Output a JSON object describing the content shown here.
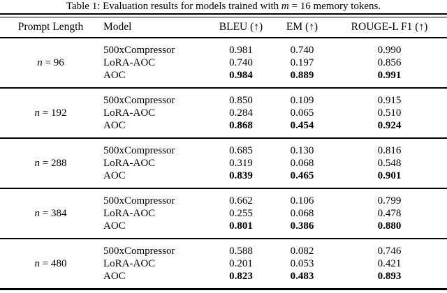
{
  "caption": {
    "prefix": "Table 1: Evaluation results for models trained with ",
    "math_var": "m",
    "suffix": " = 16 memory tokens."
  },
  "table": {
    "headers": [
      "Prompt Length",
      "Model",
      "BLEU (↑)",
      "EM (↑)",
      "ROUGE-L F1 (↑)"
    ],
    "groups": [
      {
        "prompt": {
          "var": "n",
          "eq": "= 96"
        },
        "rows": [
          {
            "model": "500xCompressor",
            "values": [
              "0.981",
              "0.740",
              "0.990"
            ],
            "bold": false
          },
          {
            "model": "LoRA-AOC",
            "values": [
              "0.740",
              "0.197",
              "0.856"
            ],
            "bold": false
          },
          {
            "model": "AOC",
            "values": [
              "0.984",
              "0.889",
              "0.991"
            ],
            "bold": true
          }
        ]
      },
      {
        "prompt": {
          "var": "n",
          "eq": "= 192"
        },
        "rows": [
          {
            "model": "500xCompressor",
            "values": [
              "0.850",
              "0.109",
              "0.915"
            ],
            "bold": false
          },
          {
            "model": "LoRA-AOC",
            "values": [
              "0.284",
              "0.065",
              "0.510"
            ],
            "bold": false
          },
          {
            "model": "AOC",
            "values": [
              "0.868",
              "0.454",
              "0.924"
            ],
            "bold": true
          }
        ]
      },
      {
        "prompt": {
          "var": "n",
          "eq": "= 288"
        },
        "rows": [
          {
            "model": "500xCompressor",
            "values": [
              "0.685",
              "0.130",
              "0.816"
            ],
            "bold": false
          },
          {
            "model": "LoRA-AOC",
            "values": [
              "0.319",
              "0.068",
              "0.548"
            ],
            "bold": false
          },
          {
            "model": "AOC",
            "values": [
              "0.839",
              "0.465",
              "0.901"
            ],
            "bold": true
          }
        ]
      },
      {
        "prompt": {
          "var": "n",
          "eq": "= 384"
        },
        "rows": [
          {
            "model": "500xCompressor",
            "values": [
              "0.662",
              "0.106",
              "0.799"
            ],
            "bold": false
          },
          {
            "model": "LoRA-AOC",
            "values": [
              "0.255",
              "0.068",
              "0.478"
            ],
            "bold": false
          },
          {
            "model": "AOC",
            "values": [
              "0.801",
              "0.386",
              "0.880"
            ],
            "bold": true
          }
        ]
      },
      {
        "prompt": {
          "var": "n",
          "eq": "= 480"
        },
        "rows": [
          {
            "model": "500xCompressor",
            "values": [
              "0.588",
              "0.082",
              "0.746"
            ],
            "bold": false
          },
          {
            "model": "LoRA-AOC",
            "values": [
              "0.201",
              "0.053",
              "0.421"
            ],
            "bold": false
          },
          {
            "model": "AOC",
            "values": [
              "0.823",
              "0.483",
              "0.893"
            ],
            "bold": true
          }
        ]
      }
    ]
  },
  "chart_data": {
    "type": "table",
    "title": "Table 1: Evaluation results for models trained with m = 16 memory tokens.",
    "columns": [
      "Prompt Length",
      "Model",
      "BLEU",
      "EM",
      "ROUGE-L F1"
    ],
    "rows": [
      [
        "n = 96",
        "500xCompressor",
        0.981,
        0.74,
        0.99
      ],
      [
        "n = 96",
        "LoRA-AOC",
        0.74,
        0.197,
        0.856
      ],
      [
        "n = 96",
        "AOC",
        0.984,
        0.889,
        0.991
      ],
      [
        "n = 192",
        "500xCompressor",
        0.85,
        0.109,
        0.915
      ],
      [
        "n = 192",
        "LoRA-AOC",
        0.284,
        0.065,
        0.51
      ],
      [
        "n = 192",
        "AOC",
        0.868,
        0.454,
        0.924
      ],
      [
        "n = 288",
        "500xCompressor",
        0.685,
        0.13,
        0.816
      ],
      [
        "n = 288",
        "LoRA-AOC",
        0.319,
        0.068,
        0.548
      ],
      [
        "n = 288",
        "AOC",
        0.839,
        0.465,
        0.901
      ],
      [
        "n = 384",
        "500xCompressor",
        0.662,
        0.106,
        0.799
      ],
      [
        "n = 384",
        "LoRA-AOC",
        0.255,
        0.068,
        0.478
      ],
      [
        "n = 384",
        "AOC",
        0.801,
        0.386,
        0.88
      ],
      [
        "n = 480",
        "500xCompressor",
        0.588,
        0.082,
        0.746
      ],
      [
        "n = 480",
        "LoRA-AOC",
        0.201,
        0.053,
        0.421
      ],
      [
        "n = 480",
        "AOC",
        0.823,
        0.483,
        0.893
      ]
    ]
  }
}
